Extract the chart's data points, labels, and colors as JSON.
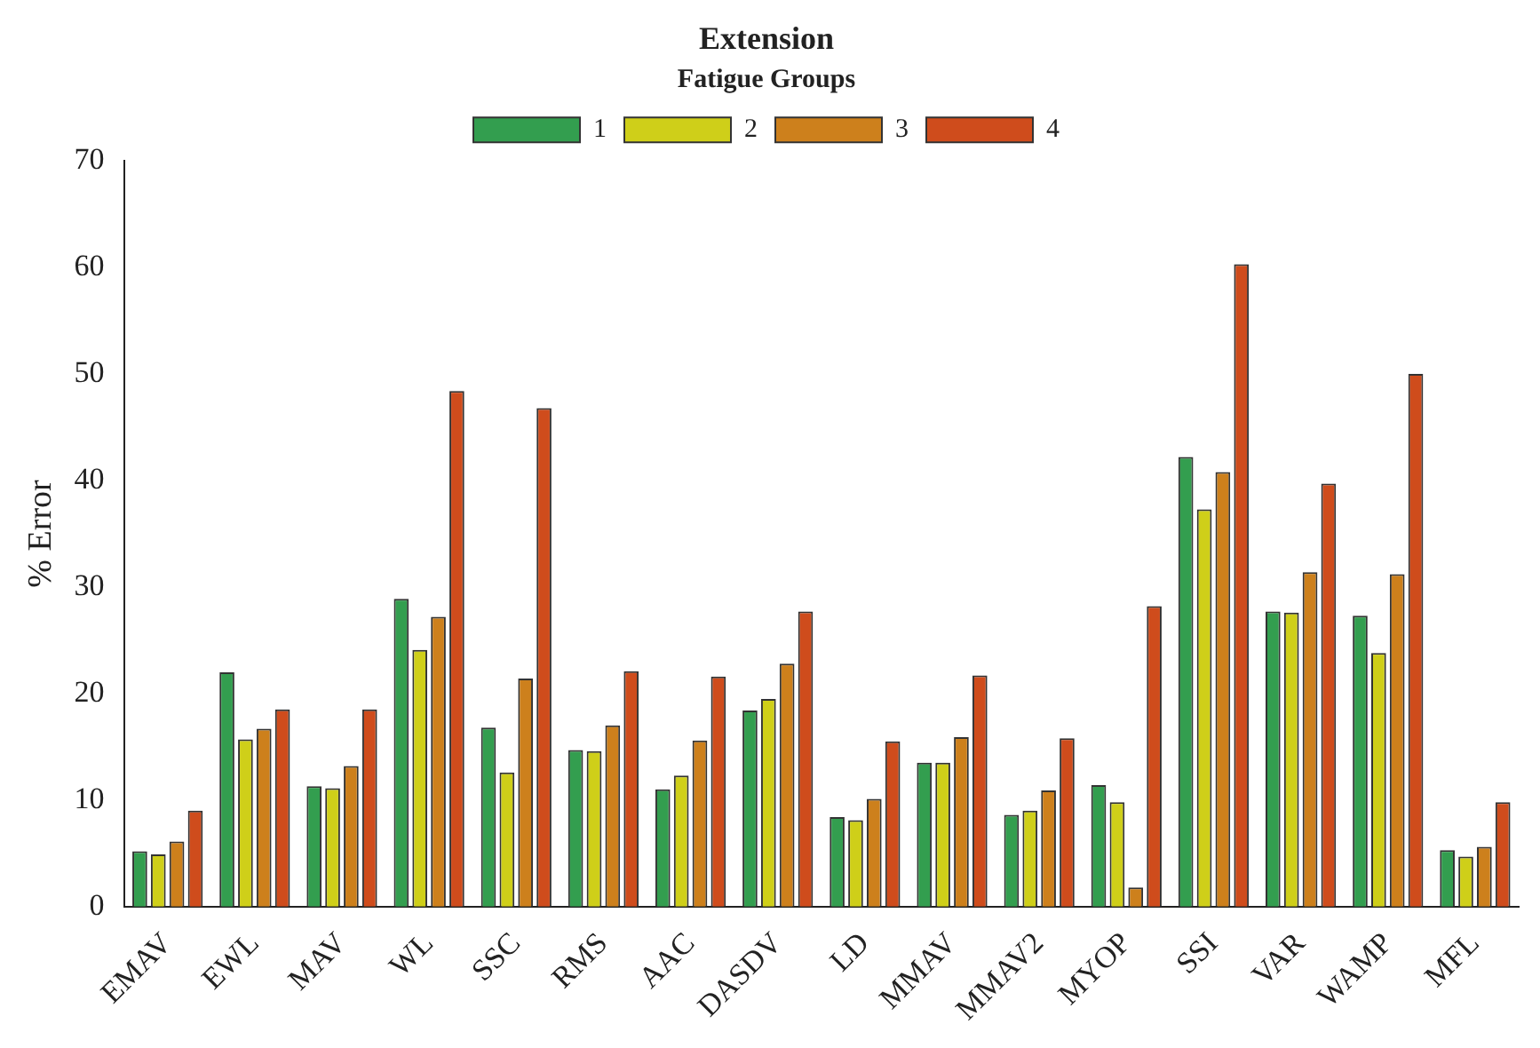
{
  "chart_data": {
    "type": "bar",
    "title": "Extension",
    "ylabel": "% Error",
    "legend_title": "Fatigue Groups",
    "legend": "top",
    "grid": false,
    "categories": [
      "EMAV",
      "EWL",
      "MAV",
      "WL",
      "SSC",
      "RMS",
      "AAC",
      "DASDV",
      "LD",
      "MMAV",
      "MMAV2",
      "MYOP",
      "SSI",
      "VAR",
      "WAMP",
      "MFL"
    ],
    "ylim": [
      0,
      70
    ],
    "yticks": [
      0,
      10,
      20,
      30,
      40,
      50,
      60,
      70
    ],
    "series": [
      {
        "name": "1",
        "color": "#339e4f",
        "values": [
          5.2,
          22,
          11.3,
          28.9,
          16.8,
          14.7,
          11,
          18.4,
          8.4,
          13.5,
          8.6,
          11.4,
          42.2,
          27.7,
          27.3,
          5.3
        ]
      },
      {
        "name": "2",
        "color": "#cfcf19",
        "values": [
          4.9,
          15.7,
          11.1,
          24.1,
          12.6,
          14.6,
          12.3,
          19.5,
          8.1,
          13.5,
          9,
          9.8,
          37.3,
          27.6,
          23.8,
          4.7
        ]
      },
      {
        "name": "3",
        "color": "#cd801c",
        "values": [
          6.1,
          16.7,
          13.2,
          27.2,
          21.4,
          17,
          15.6,
          22.8,
          10.1,
          15.9,
          10.9,
          1.8,
          40.8,
          31.4,
          31.2,
          5.6
        ]
      },
      {
        "name": "4",
        "color": "#cf4c1c",
        "values": [
          9,
          18.5,
          18.5,
          48.4,
          46.8,
          22.1,
          21.6,
          27.7,
          15.5,
          21.7,
          15.8,
          28.2,
          60.3,
          39.7,
          50,
          9.8
        ]
      }
    ]
  }
}
